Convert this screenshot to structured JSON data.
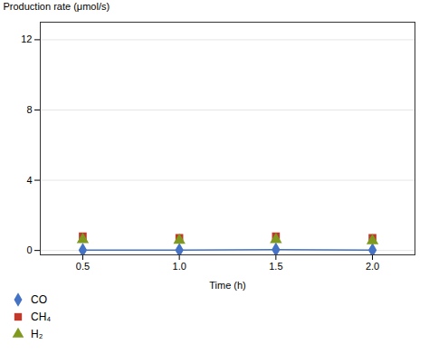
{
  "chart_data": {
    "type": "line",
    "xlabel": "Time (h)",
    "ylabel": "Production rate (μmol/s)",
    "x": [
      0.5,
      1.0,
      1.5,
      2.0
    ],
    "series": [
      {
        "name": "CO",
        "color": "#4472c4",
        "values": [
          0.02,
          0.02,
          0.05,
          0.02
        ],
        "type": "line",
        "marker": "diamond",
        "line_style": "solid"
      },
      {
        "name": "CH₄",
        "color": "#c0392b",
        "values": [
          0.8,
          0.72,
          0.8,
          0.72
        ],
        "type": "scatter",
        "marker": "square",
        "line_style": "none"
      },
      {
        "name": "H₂",
        "color": "#7f9a1e",
        "values": [
          0.62,
          0.58,
          0.62,
          0.55
        ],
        "type": "scatter",
        "marker": "triangle",
        "line_style": "none"
      }
    ],
    "xlim": [
      0.28,
      2.22
    ],
    "xticks": [
      0.5,
      1,
      1.5,
      2
    ],
    "ylim": [
      -0.25,
      13.0
    ],
    "yticks": [
      0,
      4,
      8,
      12
    ],
    "grid": "y",
    "legend": "lower left"
  }
}
